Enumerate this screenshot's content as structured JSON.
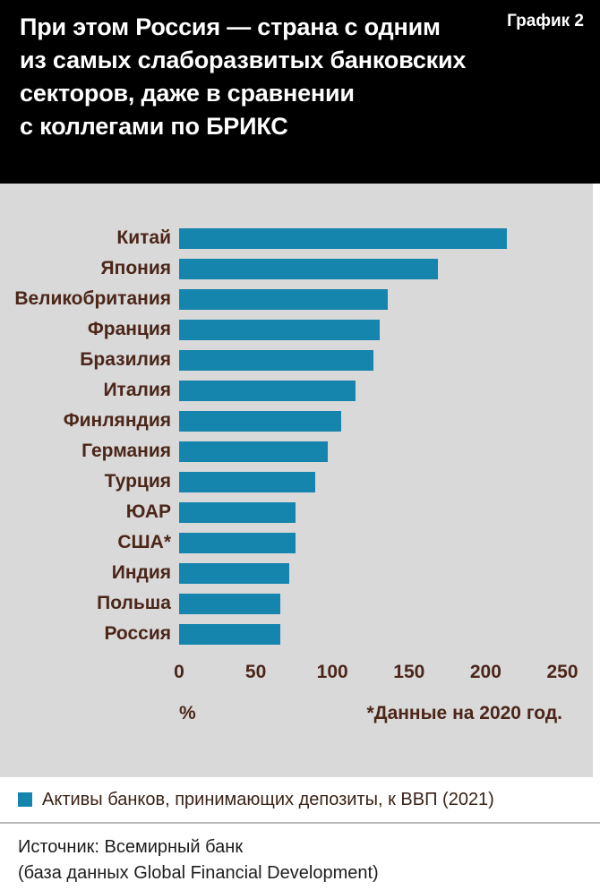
{
  "header": {
    "title": "При этом Россия — страна с одним\nиз самых слаборазвитых банковских\nсекторов, даже в сравнении\nс коллегами по БРИКС",
    "tag": "График 2"
  },
  "chart_data": {
    "type": "bar",
    "orientation": "horizontal",
    "title": "",
    "categories": [
      "Китай",
      "Япония",
      "Великобритания",
      "Франция",
      "Бразилия",
      "Италия",
      "Финляндия",
      "Германия",
      "Турция",
      "ЮАР",
      "США*",
      "Индия",
      "Польша",
      "Россия"
    ],
    "values": [
      214,
      169,
      136,
      131,
      127,
      115,
      106,
      97,
      89,
      76,
      76,
      72,
      66,
      66
    ],
    "xlim": [
      0,
      250
    ],
    "xticks": [
      0,
      50,
      100,
      150,
      200,
      250
    ],
    "xlabel": "%",
    "note": "*Данные на 2020 год.",
    "bar_color": "#1585ad",
    "plot_bg": "#d9d9d9",
    "grid": "off",
    "legend_position": "bottom"
  },
  "legend": {
    "swatch_color": "#1585ad",
    "label": "Активы банков, принимающих депозиты, к ВВП (2021)"
  },
  "source": {
    "line1": "Источник: Всемирный банк",
    "line2": "(база данных Global Financial Development)"
  }
}
